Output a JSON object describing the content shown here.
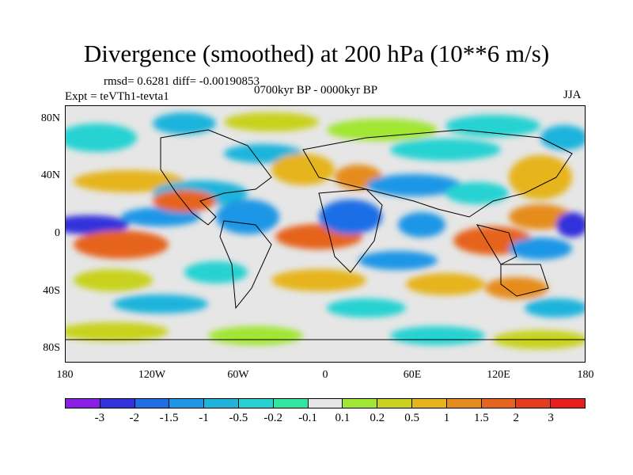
{
  "title": "Divergence (smoothed) at 200 hPa (10**6 m/s)",
  "stats": "rmsd= 0.6281 diff= -0.00190853",
  "experiment": "Expt = teVTh1-tevta1",
  "period": "0700kyr BP - 0000kyr BP",
  "season": "JJA",
  "map": {
    "lat_ticks": [
      "80N",
      "40N",
      "0",
      "40S",
      "80S"
    ],
    "lon_ticks": [
      "180",
      "120W",
      "60W",
      "0",
      "60E",
      "120E",
      "180"
    ],
    "lat_range": [
      -90,
      90
    ],
    "lon_range": [
      -180,
      180
    ]
  },
  "colorbar": {
    "labels": [
      "-3",
      "-2",
      "-1.5",
      "-1",
      "-0.5",
      "-0.2",
      "-0.1",
      "0.1",
      "0.2",
      "0.5",
      "1",
      "1.5",
      "2",
      "3"
    ],
    "colors": [
      "#8a1ee6",
      "#3232dc",
      "#1e6ee6",
      "#1e96e6",
      "#1eb4dc",
      "#28d2d2",
      "#32e6a0",
      "#e6e6e6",
      "#a0e632",
      "#c8d21e",
      "#e6b41e",
      "#e68c1e",
      "#e6641e",
      "#e63c1e",
      "#e61e1e"
    ]
  }
}
